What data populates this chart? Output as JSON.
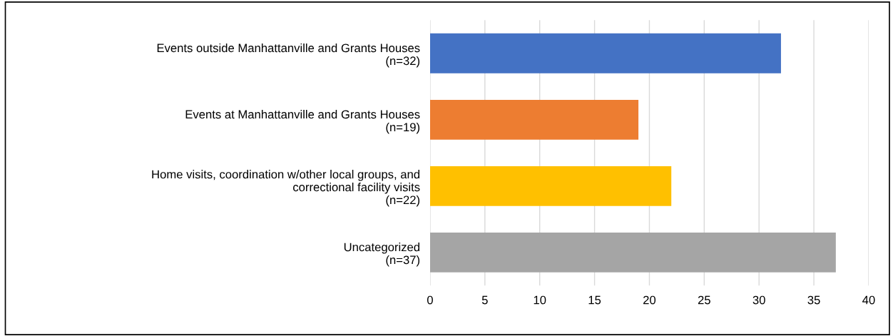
{
  "chart_data": {
    "type": "bar",
    "orientation": "horizontal",
    "categories": [
      "Events outside Manhattanville and Grants Houses\n(n=32)",
      "Events at Manhattanville and Grants Houses\n(n=19)",
      "Home visits, coordination w/other local groups, and\ncorrectional facility visits\n(n=22)",
      "Uncategorized\n(n=37)"
    ],
    "values": [
      32,
      19,
      22,
      37
    ],
    "colors": [
      "#4472c4",
      "#ed7d31",
      "#ffc000",
      "#a5a5a5"
    ],
    "xlim": [
      0,
      40
    ],
    "xticks": [
      0,
      5,
      10,
      15,
      20,
      25,
      30,
      35,
      40
    ],
    "grid": "x"
  }
}
